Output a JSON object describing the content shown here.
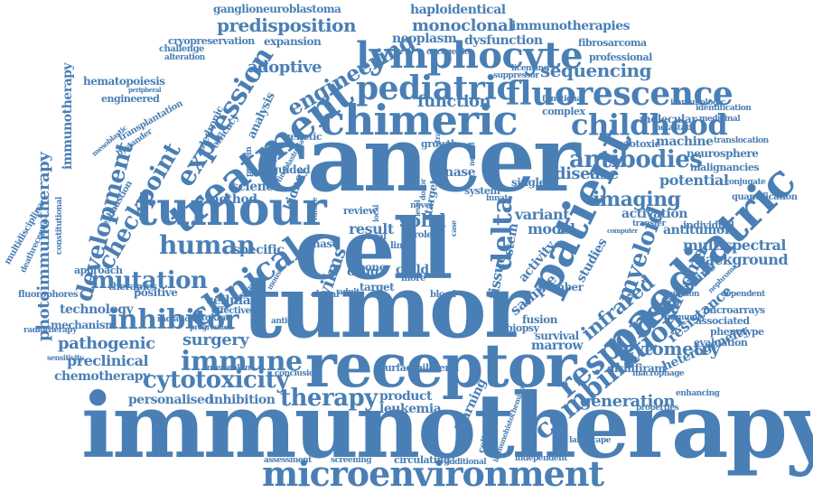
{
  "words": {
    "immunotherapy": "immunotherapy",
    "cancer": "cancer",
    "tumor": "tumor",
    "cell": "cell",
    "receptor": "receptor",
    "microenvironment": "microenvironment",
    "chimeric": "chimeric",
    "tumour": "tumour",
    "fluorescence": "fluorescence",
    "lymphocyte": "lymphocyte",
    "pediatric": "pediatric",
    "treatment": "treatment",
    "paediatric": "paediatric",
    "patient": "patient",
    "response": "response",
    "inhibitor": "inhibitor",
    "clinical": "clinical",
    "childhood": "childhood",
    "antibodies": "antibodies",
    "combination": "combination",
    "checkpoint": "checkpoint",
    "development": "development",
    "expression": "expression",
    "engineering": "engineering",
    "predisposition": "predisposition",
    "monoclonal": "monoclonal",
    "immunotherapies": "immunotherapies",
    "ganglioneuroblastoma": "ganglioneuroblastoma",
    "haploidentical": "haploidentical",
    "adoptive": "adoptive",
    "sequencing": "sequencing",
    "human": "human",
    "immune": "immune",
    "mutation": "mutation",
    "cytotoxicity": "cytotoxicity",
    "therapy": "therapy",
    "surgery": "surgery",
    "pathogenic": "pathogenic",
    "preclinical": "preclinical",
    "chemotherapy": "chemotherapy",
    "technology": "technology",
    "mechanism": "mechanism",
    "personalised": "personalised",
    "inhibition": "inhibition",
    "leukemia": "leukemia",
    "product": "product",
    "generation": "generation",
    "heterogeneity": "heterogeneity",
    "cytometry": "cytometry",
    "multispectral": "multispectral",
    "background": "background",
    "antitumor": "antitumor",
    "imaging": "imaging",
    "disease": "disease",
    "potential": "potential",
    "solid": "solid",
    "delta": "delta",
    "variant": "variant",
    "activation": "activation",
    "myeloid": "myeloid",
    "infrared": "infrared",
    "sarcoma": "sarcoma",
    "resistance": "resistance",
    "photoimmunotherapy": "photoimmunotherapy",
    "immunotherapy_small": "immunotherapy",
    "function": "function",
    "neoplasm": "neoplasm",
    "dysfunction": "dysfunction",
    "expansion": "expansion",
    "cryopreservation": "cryopreservation",
    "fibrosarcoma": "fibrosarcoma",
    "professional": "professional",
    "machine": "machine",
    "cytotoxic": "cytotoxic",
    "neurosphere": "neurosphere",
    "malignancies": "malignancies",
    "engraftment": "engraftment",
    "translocation": "translocation",
    "molecular": "molecular",
    "hematopoiesis": "hematopoiesis",
    "engineered": "engineered",
    "transplantation": "transplantation",
    "challenge": "challenge",
    "alteration": "alteration",
    "oncogenic": "oncogenic",
    "specific": "specific",
    "method": "method",
    "science": "science",
    "cellular": "cellular",
    "positive": "positive",
    "approach": "approach",
    "therapies": "therapies",
    "kidney": "kidney",
    "guided": "guided",
    "result": "result",
    "model": "model",
    "tissue": "tissue",
    "sample": "sample",
    "stem": "stem",
    "activity": "activity",
    "marrow": "marrow",
    "survival": "survival",
    "fusion": "fusion",
    "biopsy": "biopsy",
    "learning": "learning",
    "drug": "drug",
    "bone": "bone",
    "child": "child",
    "phase": "phase",
    "wilms": "wilms",
    "target": "target",
    "targeted": "targeted",
    "kinase": "kinase",
    "single": "single",
    "system": "system",
    "review": "review",
    "multidisciplinary": "multidisciplinary",
    "deathreceptor": "deathreceptor",
    "constitutional": "constitutional",
    "fluorophores": "fluorophores",
    "radiotherapy": "radiotherapy",
    "sensitivity": "sensitivity",
    "studies": "studies",
    "number": "number",
    "effective": "effective",
    "zoledronic": "zoledronic",
    "efficacy": "efficacy",
    "analysis": "analysis",
    "genetic": "genetic",
    "bystander": "bystander",
    "exhaustion": "exhaustion",
    "growth": "growth",
    "conjugate": "conjugate",
    "quantification": "quantification",
    "identification": "identification",
    "medicinal": "medicinal",
    "immunologic": "immunologic",
    "metastatic": "metastatic",
    "complex": "complex",
    "functional": "functional",
    "licensing": "licensing",
    "suppressor": "suppressor",
    "individual": "individual",
    "microarrays": "microarrays",
    "associated": "associated",
    "phenotype": "phenotype",
    "evaluation": "evaluation",
    "disulfiram": "disulfiram",
    "macrophage": "macrophage",
    "enhancing": "enhancing",
    "landscape": "landscape",
    "independent": "independent",
    "additional": "additional",
    "circulating": "circulating",
    "screening": "screening",
    "assessment": "assessment",
    "surface": "surface",
    "bilateral": "bilateral",
    "conclusion": "conclusion",
    "interleukin": "interleukin",
    "cytokine": "cytokine",
    "radiation": "radiation",
    "progression": "progression",
    "antigen": "antigen",
    "properties": "properties",
    "dependent": "dependent",
    "nephroma": "nephroma",
    "immunity": "immunity",
    "common": "common",
    "medicine": "medicine",
    "collateral": "collateral",
    "immunohistochemistry": "immunohistochemistry",
    "protein": "protein",
    "neural": "neural",
    "novel": "novel",
    "level": "level",
    "transfer": "transfer",
    "computer": "computer",
    "case": "case",
    "clonal": "clonal",
    "adult": "adult",
    "blood": "blood",
    "more": "more",
    "line": "line",
    "local": "local",
    "role": "role",
    "trial": "trial",
    "peripheral": "peripheral",
    "mesoblastic": "mesoblastic",
    "retinoblastoma": "retinoblastoma",
    "innate": "innate",
    "mouse": "mouse",
    "normal": "normal",
    "donor": "donor",
    "future": "future",
    "strategy": "strategy"
  }
}
